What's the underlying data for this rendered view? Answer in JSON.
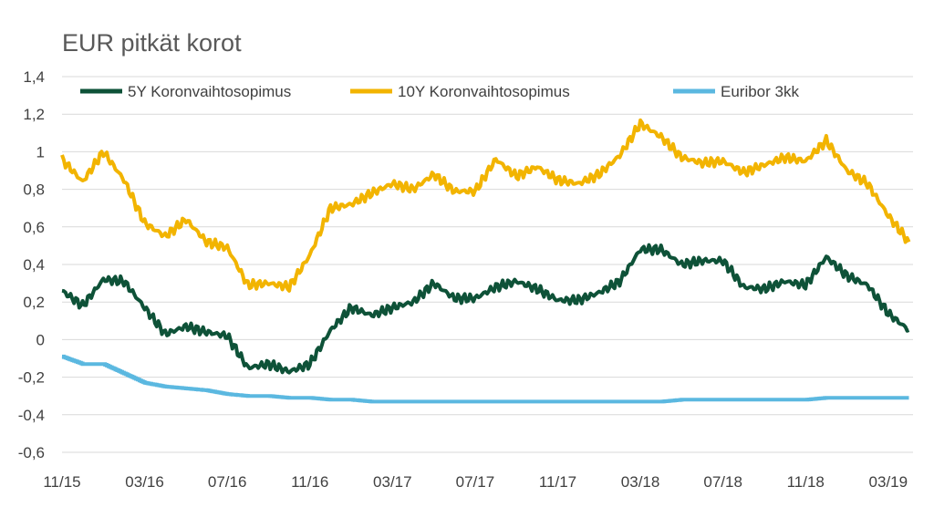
{
  "chart_data": {
    "type": "line",
    "title": "EUR pitkät korot",
    "xlabel": "",
    "ylabel": "",
    "ylim": [
      -0.6,
      1.4
    ],
    "yticks": [
      -0.6,
      -0.4,
      -0.2,
      0,
      0.2,
      0.4,
      0.6,
      0.8,
      1,
      1.2,
      1.4
    ],
    "ytick_labels": [
      "-0,6",
      "-0,4",
      "-0,2",
      "0",
      "0,2",
      "0,4",
      "0,6",
      "0,8",
      "1",
      "1,2",
      "1,4"
    ],
    "xticks": [
      "11/15",
      "03/16",
      "07/16",
      "11/16",
      "03/17",
      "07/17",
      "11/17",
      "03/18",
      "07/18",
      "11/18",
      "03/19"
    ],
    "grid": true,
    "legend_position": "top",
    "series": [
      {
        "name": "5Y Koronvaihtosopimus",
        "color": "#0e5238",
        "x": [
          "11/15",
          "12/15",
          "01/16",
          "02/16",
          "03/16",
          "04/16",
          "05/16",
          "06/16",
          "07/16",
          "08/16",
          "09/16",
          "10/16",
          "11/16",
          "12/16",
          "01/17",
          "02/17",
          "03/17",
          "04/17",
          "05/17",
          "06/17",
          "07/17",
          "08/17",
          "09/17",
          "10/17",
          "11/17",
          "12/17",
          "01/18",
          "02/18",
          "03/18",
          "04/18",
          "05/18",
          "06/18",
          "07/18",
          "08/18",
          "09/18",
          "10/18",
          "11/18",
          "12/18",
          "01/19",
          "02/19",
          "03/19",
          "04/19"
        ],
        "values": [
          0.26,
          0.18,
          0.32,
          0.31,
          0.17,
          0.03,
          0.07,
          0.04,
          0.02,
          -0.15,
          -0.13,
          -0.17,
          -0.13,
          0.05,
          0.17,
          0.13,
          0.17,
          0.2,
          0.3,
          0.22,
          0.22,
          0.28,
          0.31,
          0.27,
          0.21,
          0.21,
          0.25,
          0.31,
          0.48,
          0.48,
          0.4,
          0.42,
          0.42,
          0.28,
          0.27,
          0.31,
          0.29,
          0.44,
          0.34,
          0.29,
          0.14,
          0.05
        ]
      },
      {
        "name": "10Y Koronvaihtosopimus",
        "color": "#f2b400",
        "x": [
          "11/15",
          "12/15",
          "01/16",
          "02/16",
          "03/16",
          "04/16",
          "05/16",
          "06/16",
          "07/16",
          "08/16",
          "09/16",
          "10/16",
          "11/16",
          "12/16",
          "01/17",
          "02/17",
          "03/17",
          "04/17",
          "05/17",
          "06/17",
          "07/17",
          "08/17",
          "09/17",
          "10/17",
          "11/17",
          "12/17",
          "01/18",
          "02/18",
          "03/18",
          "04/18",
          "05/18",
          "06/18",
          "07/18",
          "08/18",
          "09/18",
          "10/18",
          "11/18",
          "12/18",
          "01/19",
          "02/19",
          "03/19",
          "04/19"
        ],
        "values": [
          0.96,
          0.84,
          1.0,
          0.85,
          0.62,
          0.55,
          0.64,
          0.52,
          0.49,
          0.29,
          0.3,
          0.28,
          0.45,
          0.7,
          0.72,
          0.78,
          0.83,
          0.8,
          0.88,
          0.79,
          0.79,
          0.96,
          0.87,
          0.92,
          0.85,
          0.83,
          0.88,
          0.98,
          1.15,
          1.08,
          0.97,
          0.94,
          0.95,
          0.89,
          0.93,
          0.97,
          0.95,
          1.06,
          0.9,
          0.83,
          0.66,
          0.52
        ]
      },
      {
        "name": "Euribor 3kk",
        "color": "#5bb8e0",
        "x": [
          "11/15",
          "12/15",
          "01/16",
          "02/16",
          "03/16",
          "04/16",
          "05/16",
          "06/16",
          "07/16",
          "08/16",
          "09/16",
          "10/16",
          "11/16",
          "12/16",
          "01/17",
          "02/17",
          "03/17",
          "04/17",
          "05/17",
          "06/17",
          "07/17",
          "08/17",
          "09/17",
          "10/17",
          "11/17",
          "12/17",
          "01/18",
          "02/18",
          "03/18",
          "04/18",
          "05/18",
          "06/18",
          "07/18",
          "08/18",
          "09/18",
          "10/18",
          "11/18",
          "12/18",
          "01/19",
          "02/19",
          "03/19",
          "04/19"
        ],
        "values": [
          -0.09,
          -0.13,
          -0.13,
          -0.18,
          -0.23,
          -0.25,
          -0.26,
          -0.27,
          -0.29,
          -0.3,
          -0.3,
          -0.31,
          -0.31,
          -0.32,
          -0.32,
          -0.33,
          -0.33,
          -0.33,
          -0.33,
          -0.33,
          -0.33,
          -0.33,
          -0.33,
          -0.33,
          -0.33,
          -0.33,
          -0.33,
          -0.33,
          -0.33,
          -0.33,
          -0.32,
          -0.32,
          -0.32,
          -0.32,
          -0.32,
          -0.32,
          -0.32,
          -0.31,
          -0.31,
          -0.31,
          -0.31,
          -0.31
        ]
      }
    ]
  }
}
